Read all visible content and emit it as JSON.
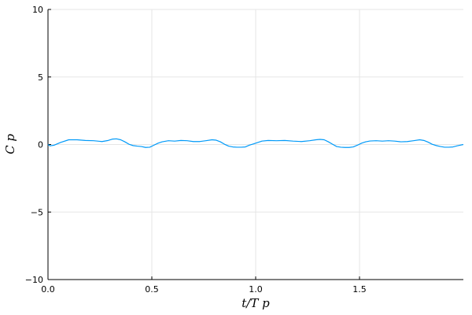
{
  "chart_data": {
    "type": "line",
    "xlabel": "t/T p",
    "ylabel": "C p",
    "xlim": [
      0.0,
      2.0
    ],
    "ylim": [
      -10,
      10
    ],
    "xticks": [
      0.0,
      0.5,
      1.0,
      1.5
    ],
    "xtick_labels": [
      "0.0",
      "0.5",
      "1.0",
      "1.5"
    ],
    "yticks": [
      -10,
      -5,
      0,
      5,
      10
    ],
    "ytick_labels": [
      "−10",
      "−5",
      "0",
      "5",
      "10"
    ],
    "grid": true,
    "series": [
      {
        "color": "#009af9",
        "x": [
          0.0,
          0.01,
          0.03,
          0.06,
          0.1,
          0.14,
          0.18,
          0.22,
          0.26,
          0.29,
          0.31,
          0.33,
          0.35,
          0.37,
          0.39,
          0.41,
          0.43,
          0.45,
          0.47,
          0.49,
          0.51,
          0.53,
          0.55,
          0.58,
          0.61,
          0.64,
          0.67,
          0.7,
          0.73,
          0.76,
          0.79,
          0.81,
          0.83,
          0.85,
          0.87,
          0.89,
          0.91,
          0.93,
          0.95,
          0.97,
          0.99,
          1.01,
          1.03,
          1.06,
          1.1,
          1.14,
          1.18,
          1.22,
          1.26,
          1.29,
          1.31,
          1.33,
          1.35,
          1.37,
          1.39,
          1.41,
          1.43,
          1.45,
          1.47,
          1.49,
          1.51,
          1.53,
          1.55,
          1.58,
          1.61,
          1.64,
          1.67,
          1.7,
          1.73,
          1.76,
          1.79,
          1.81,
          1.83,
          1.85,
          1.87,
          1.89,
          1.91,
          1.93,
          1.95,
          1.97,
          2.0
        ],
        "y": [
          0.0,
          -0.1,
          -0.05,
          0.15,
          0.35,
          0.35,
          0.3,
          0.28,
          0.22,
          0.3,
          0.4,
          0.42,
          0.35,
          0.2,
          0.02,
          -0.08,
          -0.12,
          -0.15,
          -0.22,
          -0.2,
          -0.05,
          0.1,
          0.2,
          0.28,
          0.25,
          0.3,
          0.28,
          0.22,
          0.22,
          0.28,
          0.35,
          0.32,
          0.2,
          0.02,
          -0.12,
          -0.18,
          -0.2,
          -0.2,
          -0.18,
          -0.05,
          0.05,
          0.15,
          0.25,
          0.3,
          0.28,
          0.3,
          0.25,
          0.22,
          0.28,
          0.35,
          0.38,
          0.35,
          0.2,
          0.02,
          -0.15,
          -0.2,
          -0.22,
          -0.22,
          -0.18,
          -0.05,
          0.1,
          0.2,
          0.26,
          0.28,
          0.25,
          0.28,
          0.25,
          0.2,
          0.22,
          0.28,
          0.35,
          0.3,
          0.18,
          0.02,
          -0.08,
          -0.15,
          -0.2,
          -0.2,
          -0.18,
          -0.1,
          0.0
        ]
      }
    ]
  }
}
